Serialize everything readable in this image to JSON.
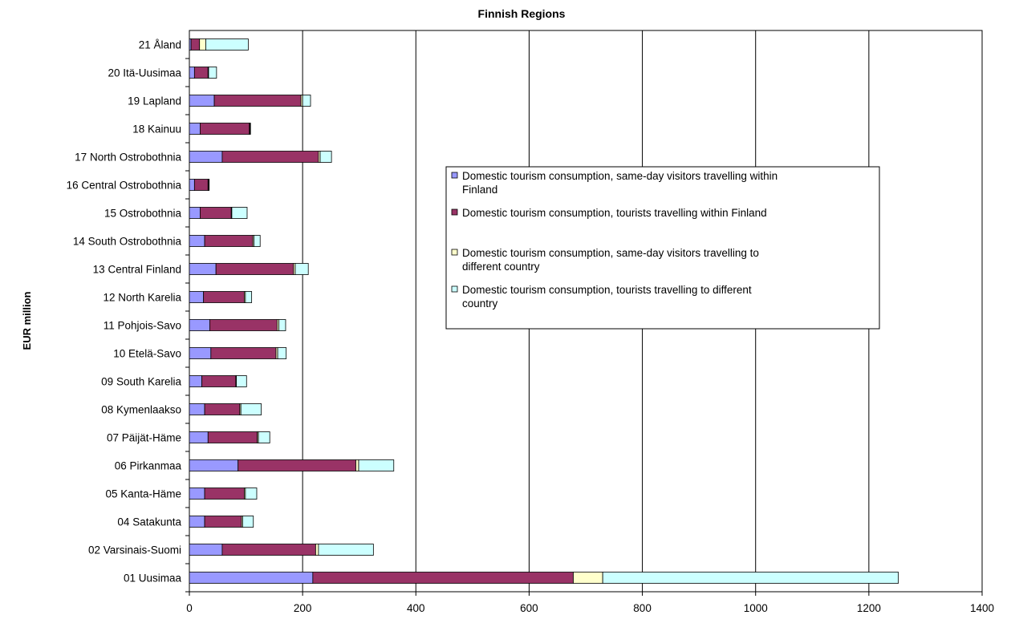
{
  "chart_data": {
    "type": "bar",
    "orientation": "horizontal",
    "stacked": true,
    "title": "Finnish Regions",
    "ylabel": "EUR million",
    "xlabel": "",
    "xlim": [
      0,
      1400
    ],
    "xticks": [
      0,
      200,
      400,
      600,
      800,
      1000,
      1200,
      1400
    ],
    "grid": "vertical",
    "legend_position": "center-right",
    "categories": [
      "01 Uusimaa",
      "02 Varsinais-Suomi",
      "04 Satakunta",
      "05 Kanta-Häme",
      "06 Pirkanmaa",
      "07 Päijät-Häme",
      "08 Kymenlaakso",
      "09 South Karelia",
      "10 Etelä-Savo",
      "11 Pohjois-Savo",
      "12 North Karelia",
      "13 Central Finland",
      "14 South Ostrobothnia",
      "15 Ostrobothnia",
      "16 Central Ostrobothnia",
      "17 North Ostrobothnia",
      "18 Kainuu",
      "19 Lapland",
      "20 Itä-Uusimaa",
      "21 Åland"
    ],
    "series": [
      {
        "name": "Domestic tourism consumption, same-day visitors travelling within Finland",
        "color": "#9999ff",
        "values": [
          218,
          58,
          27,
          27,
          86,
          33,
          27,
          22,
          38,
          36,
          25,
          47,
          27,
          19,
          9,
          58,
          19,
          44,
          9,
          3
        ]
      },
      {
        "name": "Domestic tourism consumption, tourists travelling within Finland",
        "color": "#993366",
        "values": [
          460,
          165,
          65,
          70,
          208,
          87,
          62,
          60,
          115,
          119,
          72,
          137,
          85,
          55,
          24,
          170,
          87,
          153,
          24,
          15
        ]
      },
      {
        "name": "Domestic tourism consumption, same-day visitors travelling to different country",
        "color": "#ffffcc",
        "values": [
          52,
          5,
          2,
          2,
          5,
          2,
          2,
          1,
          3,
          3,
          2,
          3,
          2,
          1,
          1,
          3,
          1,
          3,
          1,
          11
        ]
      },
      {
        "name": "Domestic tourism consumption, tourists travelling to different country",
        "color": "#ccffff",
        "values": [
          522,
          97,
          19,
          20,
          62,
          20,
          36,
          18,
          15,
          12,
          11,
          23,
          11,
          27,
          1,
          20,
          1,
          14,
          14,
          75
        ]
      }
    ]
  }
}
